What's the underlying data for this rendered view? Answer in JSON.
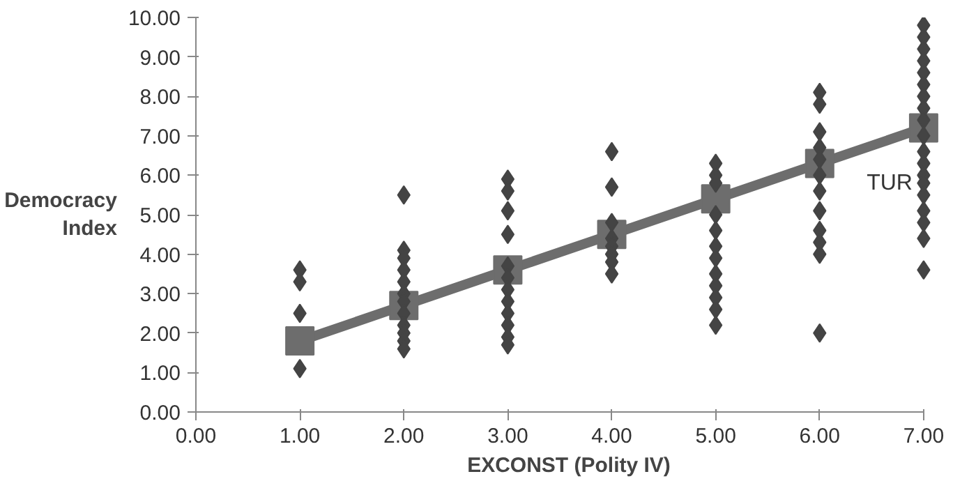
{
  "chart_data": {
    "type": "scatter",
    "xlabel": "EXCONST (Polity IV)",
    "ylabel": "Democracy\nIndex",
    "marker": "diamond",
    "grid": false,
    "xlim": [
      0,
      7
    ],
    "ylim": [
      0,
      10
    ],
    "xticks": [
      {
        "value": 0,
        "label": "0.00"
      },
      {
        "value": 1,
        "label": "1.00"
      },
      {
        "value": 2,
        "label": "2.00"
      },
      {
        "value": 3,
        "label": "3.00"
      },
      {
        "value": 4,
        "label": "4.00"
      },
      {
        "value": 5,
        "label": "5.00"
      },
      {
        "value": 6,
        "label": "6.00"
      },
      {
        "value": 7,
        "label": "7.00"
      }
    ],
    "yticks": [
      {
        "value": 0,
        "label": "0.00"
      },
      {
        "value": 1,
        "label": "1.00"
      },
      {
        "value": 2,
        "label": "2.00"
      },
      {
        "value": 3,
        "label": "3.00"
      },
      {
        "value": 4,
        "label": "4.00"
      },
      {
        "value": 5,
        "label": "5.00"
      },
      {
        "value": 6,
        "label": "6.00"
      },
      {
        "value": 7,
        "label": "7.00"
      },
      {
        "value": 8,
        "label": "8.00"
      },
      {
        "value": 9,
        "label": "9.00"
      },
      {
        "value": 10,
        "label": "10.00"
      }
    ],
    "series": [
      {
        "color": "#444444",
        "x": [
          1,
          1,
          1,
          1,
          2,
          2,
          2,
          2,
          2,
          2,
          2,
          2,
          2,
          2,
          2,
          2,
          3,
          3,
          3,
          3,
          3,
          3,
          3,
          3,
          3,
          3,
          3,
          3,
          4,
          4,
          4,
          4,
          4,
          4,
          4,
          4,
          5,
          5,
          5,
          5,
          5,
          5,
          5,
          5,
          5,
          5,
          5,
          5,
          6,
          6,
          6,
          6,
          6,
          6,
          6,
          6,
          6,
          6,
          6,
          6,
          7,
          7,
          7,
          7,
          7,
          7,
          7,
          7,
          7,
          7,
          7,
          7,
          7,
          7,
          7,
          7,
          7,
          7,
          7
        ],
        "values": [
          3.6,
          3.3,
          2.5,
          1.1,
          5.5,
          4.1,
          3.9,
          3.6,
          3.3,
          3.0,
          2.8,
          2.5,
          2.2,
          2.0,
          1.8,
          1.6,
          5.9,
          5.6,
          5.1,
          4.5,
          3.7,
          3.4,
          3.1,
          2.8,
          2.5,
          2.2,
          1.9,
          1.7,
          6.6,
          5.7,
          4.8,
          4.4,
          4.2,
          4.0,
          3.8,
          3.5,
          6.3,
          6.0,
          5.8,
          5.0,
          4.6,
          4.2,
          3.9,
          3.5,
          3.2,
          2.9,
          2.6,
          2.2,
          8.1,
          7.8,
          7.1,
          6.7,
          6.4,
          6.0,
          5.6,
          5.1,
          4.6,
          4.3,
          4.0,
          2.0,
          9.8,
          9.5,
          9.2,
          8.9,
          8.6,
          8.3,
          8.0,
          7.7,
          7.4,
          7.0,
          6.6,
          6.3,
          6.0,
          5.8,
          5.5,
          5.1,
          4.8,
          4.4,
          3.6
        ]
      },
      {
        "type": "line",
        "marker": "square",
        "color": "#6d6d6d",
        "x": [
          1,
          2,
          3,
          4,
          5,
          6,
          7
        ],
        "values": [
          1.8,
          2.7,
          3.6,
          4.5,
          5.4,
          6.3,
          7.2
        ]
      }
    ],
    "annotations": [
      {
        "text": "TUR",
        "x": 7,
        "y": 5.8
      }
    ]
  }
}
